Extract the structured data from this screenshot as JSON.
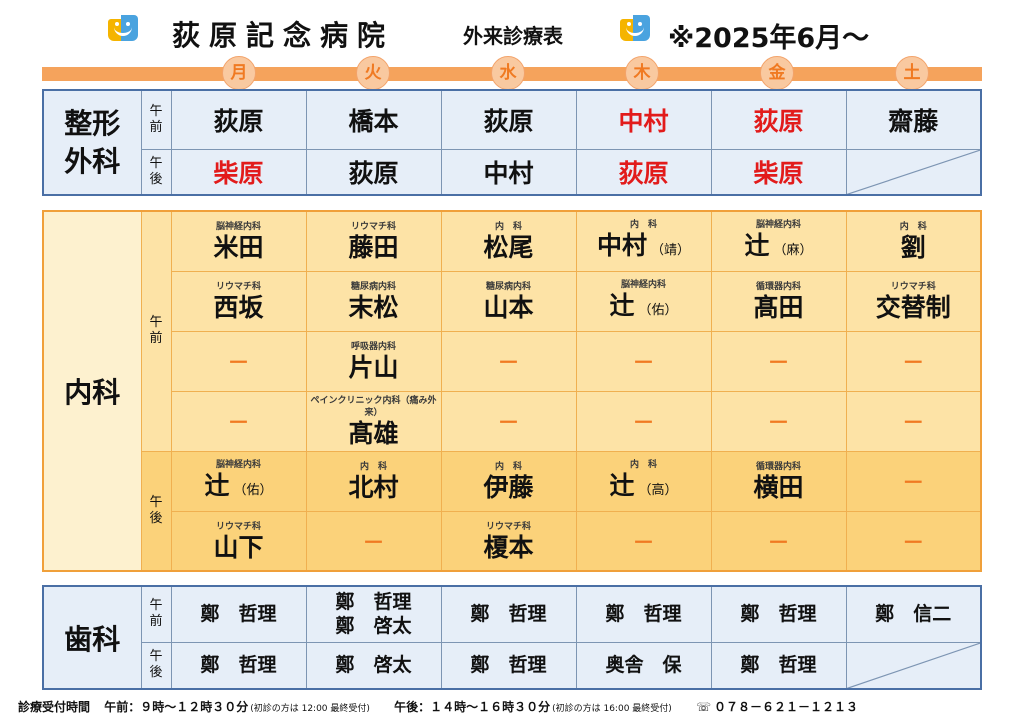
{
  "header": {
    "title": "荻原記念病院",
    "subtitle": "外来診療表",
    "since": "※2025年6月～",
    "logo_icon": "hospital-logo-icon"
  },
  "days": [
    "月",
    "火",
    "水",
    "木",
    "金",
    "土"
  ],
  "orthopedics": {
    "dept_line1": "整形",
    "dept_line2": "外科",
    "am_label": "午\n前",
    "pm_label": "午\n後",
    "am": [
      "荻原",
      "橋本",
      "荻原",
      "中村",
      "荻原",
      "齋藤"
    ],
    "am_red": [
      false,
      false,
      false,
      true,
      true,
      false
    ],
    "pm": [
      "柴原",
      "荻原",
      "中村",
      "荻原",
      "柴原",
      ""
    ],
    "pm_red": [
      true,
      false,
      false,
      true,
      true,
      false
    ]
  },
  "internal": {
    "dept": "内科",
    "am_label": "午\n前",
    "pm_label": "午\n後",
    "dash": "－",
    "am_rows": [
      [
        {
          "spec": "脳神経内科",
          "doc": "米田",
          "note": ""
        },
        {
          "spec": "リウマチ科",
          "doc": "藤田",
          "note": ""
        },
        {
          "spec": "内　科",
          "doc": "松尾",
          "note": ""
        },
        {
          "spec": "内　科",
          "doc": "中村",
          "note": "（靖）"
        },
        {
          "spec": "脳神経内科",
          "doc": "辻",
          "note": "（麻）"
        },
        {
          "spec": "内　科",
          "doc": "劉",
          "note": ""
        }
      ],
      [
        {
          "spec": "リウマチ科",
          "doc": "西坂",
          "note": ""
        },
        {
          "spec": "糖尿病内科",
          "doc": "末松",
          "note": ""
        },
        {
          "spec": "糖尿病内科",
          "doc": "山本",
          "note": ""
        },
        {
          "spec": "脳神経内科",
          "doc": "辻",
          "note": "（佑）"
        },
        {
          "spec": "循環器内科",
          "doc": "髙田",
          "note": ""
        },
        {
          "spec": "リウマチ科",
          "doc": "交替制",
          "note": ""
        }
      ],
      [
        {
          "spec": "",
          "doc": "",
          "note": ""
        },
        {
          "spec": "呼吸器内科",
          "doc": "片山",
          "note": ""
        },
        {
          "spec": "",
          "doc": "",
          "note": ""
        },
        {
          "spec": "",
          "doc": "",
          "note": ""
        },
        {
          "spec": "",
          "doc": "",
          "note": ""
        },
        {
          "spec": "",
          "doc": "",
          "note": ""
        }
      ],
      [
        {
          "spec": "",
          "doc": "",
          "note": ""
        },
        {
          "spec": "ペインクリニック内科（痛み外来）",
          "doc": "髙雄",
          "note": ""
        },
        {
          "spec": "",
          "doc": "",
          "note": ""
        },
        {
          "spec": "",
          "doc": "",
          "note": ""
        },
        {
          "spec": "",
          "doc": "",
          "note": ""
        },
        {
          "spec": "",
          "doc": "",
          "note": ""
        }
      ]
    ],
    "pm_rows": [
      [
        {
          "spec": "脳神経内科",
          "doc": "辻",
          "note": "（佑）"
        },
        {
          "spec": "内　科",
          "doc": "北村",
          "note": ""
        },
        {
          "spec": "内　科",
          "doc": "伊藤",
          "note": ""
        },
        {
          "spec": "内　科",
          "doc": "辻",
          "note": "（高）"
        },
        {
          "spec": "循環器内科",
          "doc": "横田",
          "note": ""
        },
        {
          "spec": "",
          "doc": "",
          "note": ""
        }
      ],
      [
        {
          "spec": "リウマチ科",
          "doc": "山下",
          "note": ""
        },
        {
          "spec": "",
          "doc": "",
          "note": ""
        },
        {
          "spec": "リウマチ科",
          "doc": "榎本",
          "note": ""
        },
        {
          "spec": "",
          "doc": "",
          "note": ""
        },
        {
          "spec": "",
          "doc": "",
          "note": ""
        },
        {
          "spec": "",
          "doc": "",
          "note": ""
        }
      ]
    ]
  },
  "dental": {
    "dept": "歯科",
    "am_label": "午\n前",
    "pm_label": "午\n後",
    "am": [
      "鄭　哲理",
      "鄭　哲理\n鄭　啓太",
      "鄭　哲理",
      "鄭　哲理",
      "鄭　哲理",
      "鄭　信二"
    ],
    "pm": [
      "鄭　哲理",
      "鄭　啓太",
      "鄭　哲理",
      "奥舎　保",
      "鄭　哲理",
      ""
    ]
  },
  "footer": {
    "label": "診療受付時間",
    "am_hours": "午前：９時～１２時３０分",
    "am_note": "(初診の方は 12:00 最終受付)",
    "pm_hours": "午後：１４時～１６時３０分",
    "pm_note": "(初診の方は 16:00 最終受付)",
    "phone_icon": "phone-icon",
    "phone": "０７８－６２１－１２１３"
  }
}
